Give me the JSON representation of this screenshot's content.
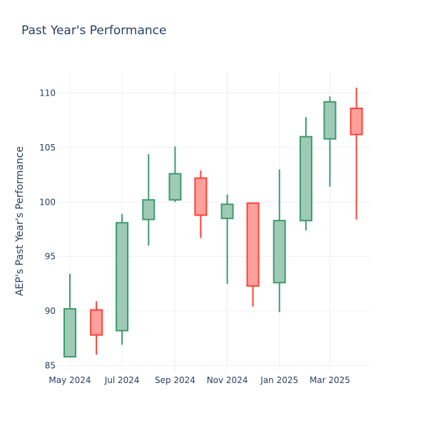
{
  "chart_data": {
    "type": "candlestick",
    "title": "Past Year's Performance",
    "xlabel": "",
    "ylabel": "AEP's Past Year's Performance",
    "ylim": [
      84.5,
      112
    ],
    "yticks": [
      85,
      90,
      95,
      100,
      105,
      110
    ],
    "xlim": [
      "2024-04-16",
      "2025-04-18"
    ],
    "xticks": [
      {
        "date": "2024-05-01",
        "label": "May 2024"
      },
      {
        "date": "2024-07-01",
        "label": "Jul 2024"
      },
      {
        "date": "2024-09-01",
        "label": "Sep 2024"
      },
      {
        "date": "2024-11-01",
        "label": "Nov 2024"
      },
      {
        "date": "2025-01-01",
        "label": "Jan 2025"
      },
      {
        "date": "2025-03-01",
        "label": "Mar 2025"
      }
    ],
    "increasing_color": "#3d9970",
    "increasing_fill": "#9ecbb5",
    "decreasing_color": "#ff4136",
    "decreasing_fill": "#ffa09b",
    "grid": true,
    "candles": [
      {
        "date": "2024-05-01",
        "open": 85.8,
        "high": 93.4,
        "low": 85.8,
        "close": 90.2
      },
      {
        "date": "2024-06-01",
        "open": 90.1,
        "high": 90.9,
        "low": 86.0,
        "close": 87.8
      },
      {
        "date": "2024-07-01",
        "open": 88.2,
        "high": 98.9,
        "low": 86.9,
        "close": 98.1
      },
      {
        "date": "2024-08-01",
        "open": 98.4,
        "high": 104.4,
        "low": 96.0,
        "close": 100.2
      },
      {
        "date": "2024-09-01",
        "open": 100.2,
        "high": 105.1,
        "low": 100.0,
        "close": 102.6
      },
      {
        "date": "2024-10-01",
        "open": 102.2,
        "high": 102.9,
        "low": 96.7,
        "close": 98.8
      },
      {
        "date": "2024-11-01",
        "open": 98.5,
        "high": 100.7,
        "low": 92.5,
        "close": 99.8
      },
      {
        "date": "2024-12-01",
        "open": 99.9,
        "high": 99.9,
        "low": 90.4,
        "close": 92.3
      },
      {
        "date": "2025-01-01",
        "open": 92.6,
        "high": 103.0,
        "low": 89.9,
        "close": 98.3
      },
      {
        "date": "2025-02-01",
        "open": 98.3,
        "high": 107.8,
        "low": 97.4,
        "close": 106.0
      },
      {
        "date": "2025-03-01",
        "open": 105.8,
        "high": 109.7,
        "low": 101.4,
        "close": 109.2
      },
      {
        "date": "2025-04-01",
        "open": 108.6,
        "high": 110.5,
        "low": 98.4,
        "close": 106.2
      }
    ]
  }
}
